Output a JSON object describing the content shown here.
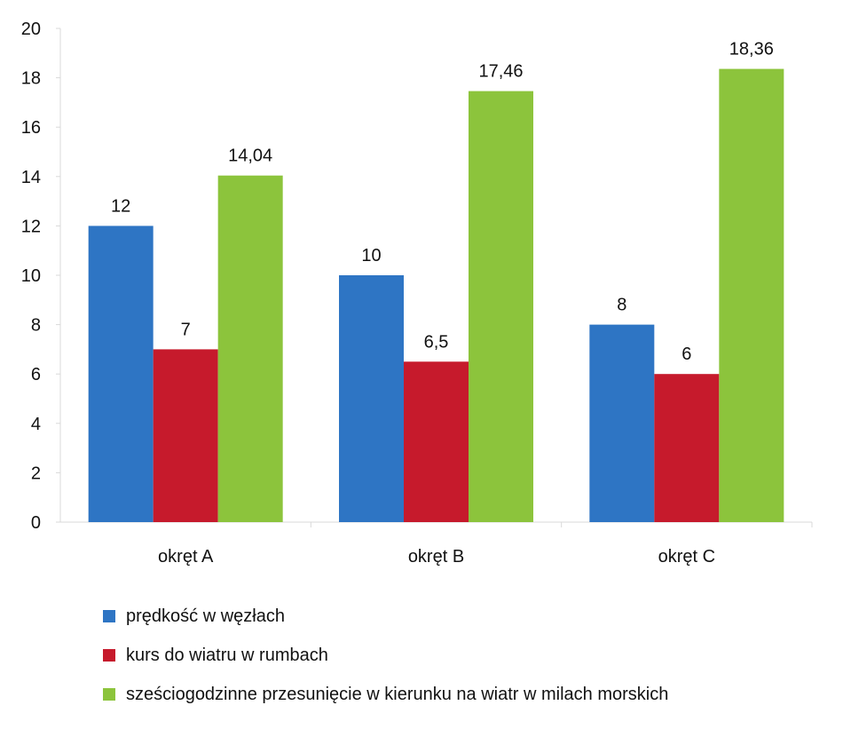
{
  "chart_data": {
    "type": "bar",
    "categories": [
      "okręt A",
      "okręt B",
      "okręt C"
    ],
    "series": [
      {
        "name": "prędkość w węzłach",
        "color": "#2e75c4",
        "values": [
          12,
          10,
          8
        ],
        "labels": [
          "12",
          "10",
          "8"
        ]
      },
      {
        "name": "kurs do wiatru w rumbach",
        "color": "#c61a2c",
        "values": [
          7,
          6.5,
          6
        ],
        "labels": [
          "7",
          "6,5",
          "6"
        ]
      },
      {
        "name": "sześciogodzinne przesunięcie w kierunku na wiatr w milach morskich",
        "color": "#8cc43c",
        "values": [
          14.04,
          17.46,
          18.36
        ],
        "labels": [
          "14,04",
          "17,46",
          "18,36"
        ]
      }
    ],
    "title": "",
    "xlabel": "",
    "ylabel": "",
    "ylim": [
      0,
      20
    ],
    "yticks": [
      "0",
      "2",
      "4",
      "6",
      "8",
      "10",
      "12",
      "14",
      "16",
      "18",
      "20"
    ],
    "grid": false,
    "legend_position": "bottom-left"
  }
}
